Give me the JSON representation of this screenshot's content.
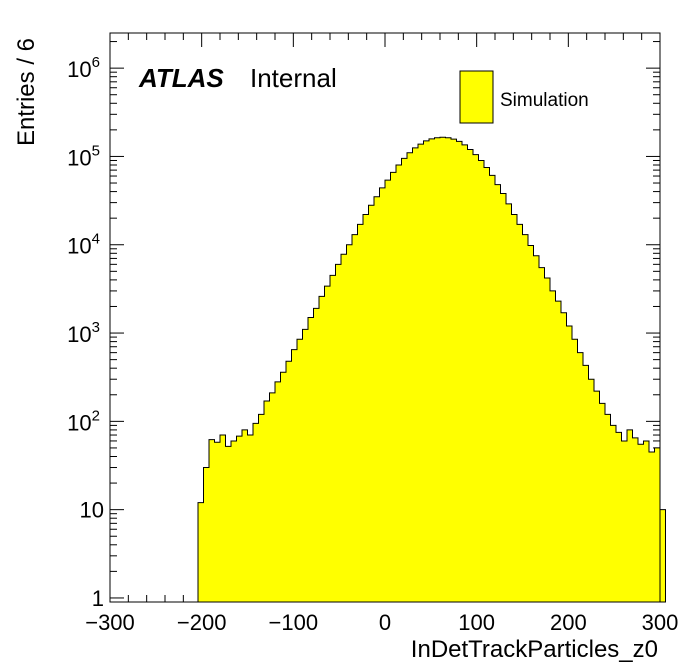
{
  "chart_data": {
    "type": "histogram",
    "xlabel": "InDetTrackParticles_z0",
    "ylabel": "Entries / 6",
    "xlim": [
      -300,
      300
    ],
    "ylim": [
      0.9,
      2500000
    ],
    "yscale": "log",
    "x_ticks": [
      "−300",
      "−200",
      "−100",
      "0",
      "100",
      "200",
      "300"
    ],
    "y_ticks": [
      {
        "value": 1,
        "base": "1",
        "exp": ""
      },
      {
        "value": 10,
        "base": "10",
        "exp": ""
      },
      {
        "value": 100,
        "base": "10",
        "exp": "2"
      },
      {
        "value": 1000,
        "base": "10",
        "exp": "3"
      },
      {
        "value": 10000,
        "base": "10",
        "exp": "4"
      },
      {
        "value": 100000,
        "base": "10",
        "exp": "5"
      },
      {
        "value": 1000000,
        "base": "10",
        "exp": "6"
      }
    ],
    "bin_edges_start": -204,
    "bin_width": 6,
    "series": [
      {
        "name": "Simulation",
        "color": "#ffff00",
        "values": [
          12,
          30,
          62,
          58,
          70,
          52,
          60,
          68,
          80,
          70,
          95,
          120,
          170,
          210,
          280,
          360,
          480,
          650,
          850,
          1100,
          1500,
          1900,
          2600,
          3400,
          4500,
          6000,
          7800,
          10000,
          13000,
          17000,
          22000,
          28000,
          35000,
          44000,
          54000,
          66000,
          80000,
          95000,
          110000,
          125000,
          138000,
          150000,
          158000,
          163000,
          165000,
          163000,
          157000,
          148000,
          135000,
          120000,
          105000,
          90000,
          75000,
          61000,
          48000,
          38000,
          29000,
          22000,
          17000,
          13000,
          9800,
          7500,
          5500,
          4200,
          3000,
          2300,
          1700,
          1200,
          850,
          600,
          430,
          300,
          220,
          160,
          120,
          90,
          75,
          60,
          80,
          65,
          55,
          60,
          45,
          50,
          10
        ]
      }
    ]
  },
  "atlas": {
    "bold": "ATLAS",
    "rest": "Internal"
  },
  "legend": {
    "label": "Simulation",
    "position": "top-right"
  }
}
